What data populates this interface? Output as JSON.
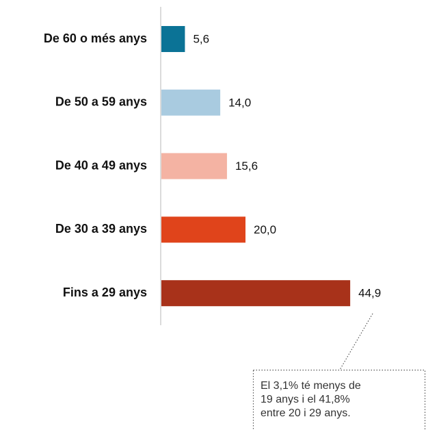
{
  "chart_data": {
    "type": "bar",
    "orientation": "horizontal",
    "categories": [
      "De 60 o més anys",
      "De 50 a 59 anys",
      "De 40 a 49 anys",
      "De 30 a 39 anys",
      "Fins a 29 anys"
    ],
    "values": [
      5.6,
      14.0,
      15.6,
      20.0,
      44.9
    ],
    "value_labels": [
      "5,6",
      "14,0",
      "15,6",
      "20,0",
      "44,9"
    ],
    "colors": [
      "#0b7396",
      "#a9cbe0",
      "#f4b3a3",
      "#e0441b",
      "#a8321a"
    ],
    "annotation": [
      "El 3,1% té menys de",
      "19 anys i el 41,8%",
      "entre 20 i 29 anys."
    ]
  }
}
